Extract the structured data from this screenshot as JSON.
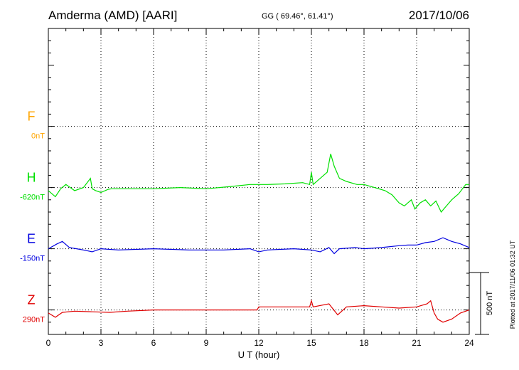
{
  "header": {
    "station": "Amderma (AMD)  [AARI]",
    "coords": "GG ( 69.46°,  61.41°)",
    "date": "2017/10/06"
  },
  "plotted_note": "Plotted at 2017/11/06 01:32 UT",
  "scale_label": "500 nT",
  "chart_data": {
    "type": "line",
    "xlabel": "U T (hour)",
    "xlim": [
      0,
      24
    ],
    "xticks": [
      0,
      3,
      6,
      9,
      12,
      15,
      18,
      21,
      24
    ],
    "grid": true,
    "ylim_nT": [
      -700,
      1800
    ],
    "scale_bar_nT": 500,
    "series": [
      {
        "name": "F",
        "baseline_label": "0nT",
        "color": "#ffa500",
        "baseline_nT": 1000,
        "x": [],
        "values": []
      },
      {
        "name": "H",
        "baseline_label": "-620nT",
        "color": "#00e000",
        "baseline_nT": 500,
        "x": [
          0,
          0.4,
          0.7,
          1.0,
          1.5,
          2.0,
          2.4,
          2.5,
          2.7,
          3.0,
          3.4,
          3.6,
          4.5,
          6.0,
          7.5,
          9.0,
          10.5,
          11.5,
          12.0,
          12.5,
          13.5,
          14.5,
          14.9,
          15.0,
          15.1,
          15.5,
          15.9,
          16.1,
          16.3,
          16.6,
          17.0,
          17.6,
          18.0,
          18.6,
          19.2,
          19.6,
          20.0,
          20.3,
          20.7,
          20.9,
          21.2,
          21.5,
          21.8,
          22.1,
          22.4,
          22.7,
          23.0,
          23.4,
          23.8,
          24.0
        ],
        "values": [
          -0.05,
          -0.15,
          -0.02,
          0.05,
          -0.05,
          0.0,
          0.15,
          -0.02,
          -0.05,
          -0.08,
          -0.03,
          -0.02,
          -0.02,
          -0.02,
          0.0,
          -0.02,
          0.02,
          0.05,
          0.05,
          0.05,
          0.06,
          0.08,
          0.05,
          0.25,
          0.05,
          0.15,
          0.25,
          0.55,
          0.35,
          0.15,
          0.1,
          0.05,
          0.05,
          0.0,
          -0.05,
          -0.12,
          -0.25,
          -0.3,
          -0.2,
          -0.35,
          -0.25,
          -0.2,
          -0.3,
          -0.22,
          -0.4,
          -0.3,
          -0.2,
          -0.1,
          0.05,
          0.05
        ]
      },
      {
        "name": "E",
        "baseline_label": "-150nT",
        "color": "#0000e0",
        "baseline_nT": 0,
        "x": [
          0,
          0.5,
          0.8,
          1.2,
          2.0,
          2.5,
          3.0,
          4.0,
          6.0,
          8.0,
          10.0,
          11.5,
          12.0,
          12.5,
          14.0,
          15.0,
          15.5,
          16.0,
          16.3,
          16.6,
          17.5,
          18.0,
          19.0,
          20.0,
          20.5,
          21.0,
          21.5,
          22.0,
          22.5,
          23.0,
          23.5,
          24.0
        ],
        "values": [
          0.0,
          0.08,
          0.12,
          0.02,
          -0.02,
          -0.05,
          0.0,
          -0.02,
          0.0,
          -0.02,
          -0.02,
          0.0,
          -0.05,
          -0.02,
          0.0,
          -0.02,
          -0.05,
          0.02,
          -0.08,
          0.0,
          0.02,
          0.0,
          0.02,
          0.05,
          0.06,
          0.06,
          0.1,
          0.12,
          0.18,
          0.12,
          0.08,
          0.02
        ]
      },
      {
        "name": "Z",
        "baseline_label": "290nT",
        "color": "#e00000",
        "baseline_nT": -500,
        "x": [
          0,
          0.4,
          0.8,
          1.5,
          2.5,
          3.5,
          4.5,
          6.0,
          8.0,
          10.0,
          11.9,
          12.0,
          13.0,
          14.0,
          14.9,
          15.0,
          15.1,
          16.0,
          16.5,
          17.0,
          18.0,
          19.0,
          20.0,
          21.0,
          21.6,
          21.8,
          22.0,
          22.2,
          22.5,
          23.0,
          23.5,
          24.0
        ],
        "values": [
          -0.05,
          -0.12,
          -0.04,
          -0.02,
          -0.03,
          -0.04,
          -0.02,
          0.0,
          0.0,
          0.0,
          0.0,
          0.05,
          0.05,
          0.05,
          0.05,
          0.15,
          0.05,
          0.1,
          -0.08,
          0.05,
          0.07,
          0.05,
          0.03,
          0.05,
          0.1,
          0.15,
          -0.05,
          -0.15,
          -0.2,
          -0.15,
          -0.05,
          0.0
        ]
      }
    ]
  }
}
